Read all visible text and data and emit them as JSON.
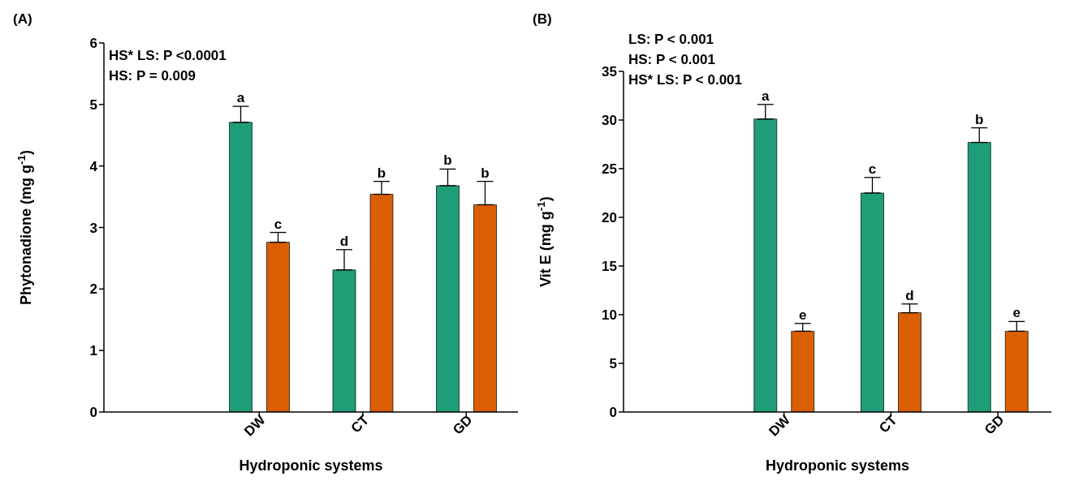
{
  "chart_data": [
    {
      "type": "bar",
      "title": "(A)",
      "xlabel": "Hydroponic systems",
      "ylabel": "Phytonadione (mg g$^{-1}$)",
      "annotations": [
        "HS* LS: P <0.0001",
        "HS: P = 0.009"
      ],
      "categories": [
        null,
        "DW",
        "CT",
        "GD"
      ],
      "series": [
        {
          "color": "#1e9e78",
          "values": [
            null,
            4.71,
            2.31,
            3.68
          ],
          "errors": [
            null,
            [
              4.71,
              4.97
            ],
            [
              2.31,
              2.64
            ],
            [
              3.68,
              3.95
            ]
          ],
          "value_labels": [
            null,
            "a",
            "d",
            "b"
          ]
        },
        {
          "color": "#d95f02",
          "values": [
            null,
            2.76,
            3.54,
            3.37
          ],
          "errors": [
            null,
            [
              2.76,
              2.92
            ],
            [
              3.54,
              3.75
            ],
            [
              3.37,
              3.75
            ]
          ],
          "value_labels": [
            null,
            "c",
            "b",
            "b"
          ]
        }
      ],
      "ylim": [
        0,
        6
      ],
      "yticks": [
        0,
        1,
        2,
        3,
        4,
        5,
        6
      ],
      "grid": false,
      "legend": false
    },
    {
      "type": "bar",
      "title": "(B)",
      "xlabel": "Hydroponic systems",
      "ylabel": "Vit E (mg g$^{-1}$)",
      "annotations": [
        "LS: P < 0.001",
        "HS: P < 0.001",
        "HS* LS: P < 0.001"
      ],
      "categories": [
        null,
        "DW",
        "CT",
        "GD"
      ],
      "series": [
        {
          "color": "#1e9e78",
          "values": [
            null,
            30.1,
            22.5,
            27.7
          ],
          "errors": [
            null,
            [
              30.1,
              31.6
            ],
            [
              22.5,
              24.1
            ],
            [
              27.7,
              29.2
            ]
          ],
          "value_labels": [
            null,
            "a",
            "c",
            "b"
          ]
        },
        {
          "color": "#d95f02",
          "values": [
            null,
            8.3,
            10.2,
            8.3
          ],
          "errors": [
            null,
            [
              8.3,
              9.1
            ],
            [
              10.2,
              11.1
            ],
            [
              8.3,
              9.3
            ]
          ],
          "value_labels": [
            null,
            "e",
            "d",
            "e"
          ]
        }
      ],
      "ylim": [
        0,
        35
      ],
      "yticks": [
        0,
        5,
        10,
        15,
        20,
        25,
        30,
        35
      ],
      "grid": false,
      "legend": false
    }
  ]
}
